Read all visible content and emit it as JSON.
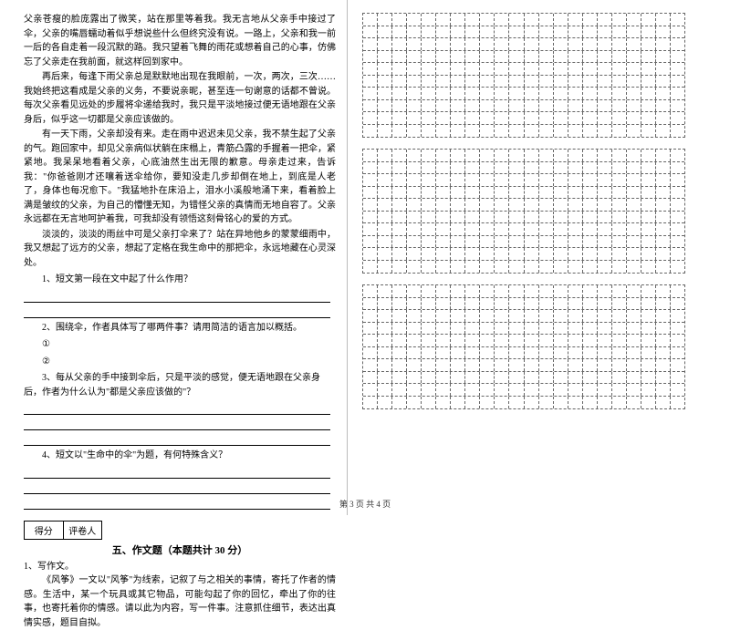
{
  "passage": {
    "p1": "父亲苍瘦的脸庞露出了微笑，站在那里等着我。我无言地从父亲手中接过了伞，父亲的嘴唇蠕动着似乎想说些什么但终究没有说。一路上，父亲和我一前一后的各自走着一段沉默的路。我只望着飞舞的雨花或想着自己的心事，仿佛忘了父亲走在我前面，就这样回到家中。",
    "p2": "再后来，每逢下雨父亲总是默默地出现在我眼前，一次，两次，三次……我始终把这看成是父亲的义务，不要说亲昵，甚至连一句谢意的话都不曾说。每次父亲看见远处的步履将伞递给我时，我只是平淡地接过便无语地跟在父亲身后，似乎这一切都是父亲应该做的。",
    "p3": "有一天下雨，父亲却没有来。走在雨中迟迟未见父亲，我不禁生起了父亲的气。跑回家中，却见父亲病似状躺在床榻上，青筋凸露的手握着一把伞，紧紧地。我呆呆地看着父亲，心底油然生出无限的歉意。母亲走过来，告诉我：\"你爸爸刚才还嚷着送伞给你，要知没走几步却倒在地上，到底是人老了，身体也每况愈下。\"我猛地扑在床沿上，泪水小溪般地涌下来，看着脸上满是皱纹的父亲，为自己的懵懂无知，为错怪父亲的真情而无地自容了。父亲永远都在无言地呵护着我，可我却没有领悟这刻骨铭心的爱的方式。",
    "p4": "淡淡的，淡淡的雨丝中可是父亲打伞来了？站在异地他乡的蒙蒙细雨中，我又想起了远方的父亲，想起了定格在我生命中的那把伞，永远地藏在心灵深处。"
  },
  "questions": {
    "q1": "1、短文第一段在文中起了什么作用？",
    "q2": "2、围绕伞，作者具体写了哪两件事？请用简洁的语言加以概括。",
    "q2a": "①",
    "q2b": "②",
    "q3": "3、每从父亲的手中接到伞后，只是平淡的感觉，便无语地跟在父亲身后，作者为什么认为\"都是父亲应该做的\"？",
    "q4": "4、短文以\"生命中的伞\"为题，有何特殊含义？"
  },
  "score": {
    "left": "得分",
    "right": "评卷人"
  },
  "section5": {
    "title": "五、作文题（本题共计 30 分）",
    "label": "1、写作文。",
    "text": "《风筝》一文以\"风筝\"为线索，记叙了与之相关的事情，寄托了作者的情感。生活中，某一个玩具或其它物品，可能勾起了你的回忆，牵出了你的往事，也寄托着你的情感。请以此为内容，写一件事。注意抓住细节，表达出真情实感，题目自拟。"
  },
  "grids": {
    "cols": 22,
    "box_rows": [
      10,
      10,
      10
    ]
  },
  "footer": "第 3 页 共 4 页",
  "colors": {
    "dashed": "#666666"
  }
}
